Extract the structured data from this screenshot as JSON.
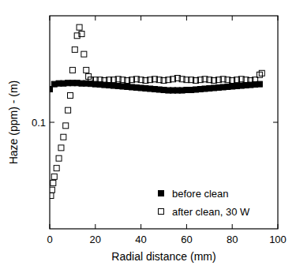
{
  "chart_data": {
    "type": "scatter",
    "x_label": "Radial distance (mm)",
    "y_label": "Haze (ppm) - (m)",
    "log": "y",
    "legend": "lower right",
    "xlim": [
      0,
      100
    ],
    "xticks": [
      0,
      20,
      40,
      60,
      80,
      100
    ],
    "ylim": [
      0.02,
      0.5
    ],
    "yticks": [
      0.1
    ],
    "series": [
      {
        "name": "before clean",
        "color": "#000000",
        "marker": "square-filled",
        "x": [
          0,
          2,
          4,
          6,
          8,
          10,
          12,
          14,
          16,
          18,
          20,
          22,
          24,
          26,
          28,
          30,
          32,
          34,
          36,
          38,
          40,
          42,
          44,
          46,
          48,
          50,
          52,
          54,
          56,
          58,
          60,
          62,
          64,
          66,
          68,
          70,
          72,
          74,
          76,
          78,
          80,
          82,
          84,
          86,
          88,
          90,
          92
        ],
        "values": [
          0.165,
          0.178,
          0.18,
          0.18,
          0.181,
          0.181,
          0.181,
          0.18,
          0.18,
          0.179,
          0.178,
          0.177,
          0.176,
          0.175,
          0.174,
          0.173,
          0.172,
          0.171,
          0.17,
          0.169,
          0.168,
          0.167,
          0.166,
          0.165,
          0.164,
          0.163,
          0.162,
          0.162,
          0.162,
          0.162,
          0.163,
          0.163,
          0.164,
          0.165,
          0.166,
          0.167,
          0.168,
          0.169,
          0.17,
          0.171,
          0.172,
          0.173,
          0.174,
          0.175,
          0.176,
          0.177,
          0.178
        ]
      },
      {
        "name": "after clean, 30 W",
        "color": "#000000",
        "marker": "square-open",
        "x": [
          0.5,
          1,
          1.5,
          2,
          3,
          4,
          5,
          6,
          7,
          8,
          9,
          10,
          11,
          12,
          13,
          14,
          15,
          16,
          17,
          18,
          20,
          22,
          24,
          26,
          28,
          30,
          32,
          34,
          36,
          38,
          40,
          42,
          44,
          46,
          48,
          50,
          52,
          54,
          56,
          58,
          60,
          62,
          64,
          66,
          68,
          70,
          72,
          74,
          76,
          78,
          80,
          82,
          84,
          86,
          88,
          90,
          92,
          93
        ],
        "values": [
          0.033,
          0.036,
          0.04,
          0.044,
          0.05,
          0.058,
          0.068,
          0.08,
          0.095,
          0.12,
          0.15,
          0.22,
          0.3,
          0.37,
          0.42,
          0.38,
          0.28,
          0.22,
          0.2,
          0.19,
          0.19,
          0.19,
          0.188,
          0.19,
          0.19,
          0.192,
          0.19,
          0.188,
          0.19,
          0.192,
          0.19,
          0.188,
          0.19,
          0.192,
          0.19,
          0.188,
          0.19,
          0.192,
          0.195,
          0.192,
          0.19,
          0.19,
          0.188,
          0.19,
          0.192,
          0.19,
          0.188,
          0.19,
          0.192,
          0.19,
          0.188,
          0.19,
          0.192,
          0.19,
          0.188,
          0.19,
          0.205,
          0.21
        ]
      }
    ]
  }
}
